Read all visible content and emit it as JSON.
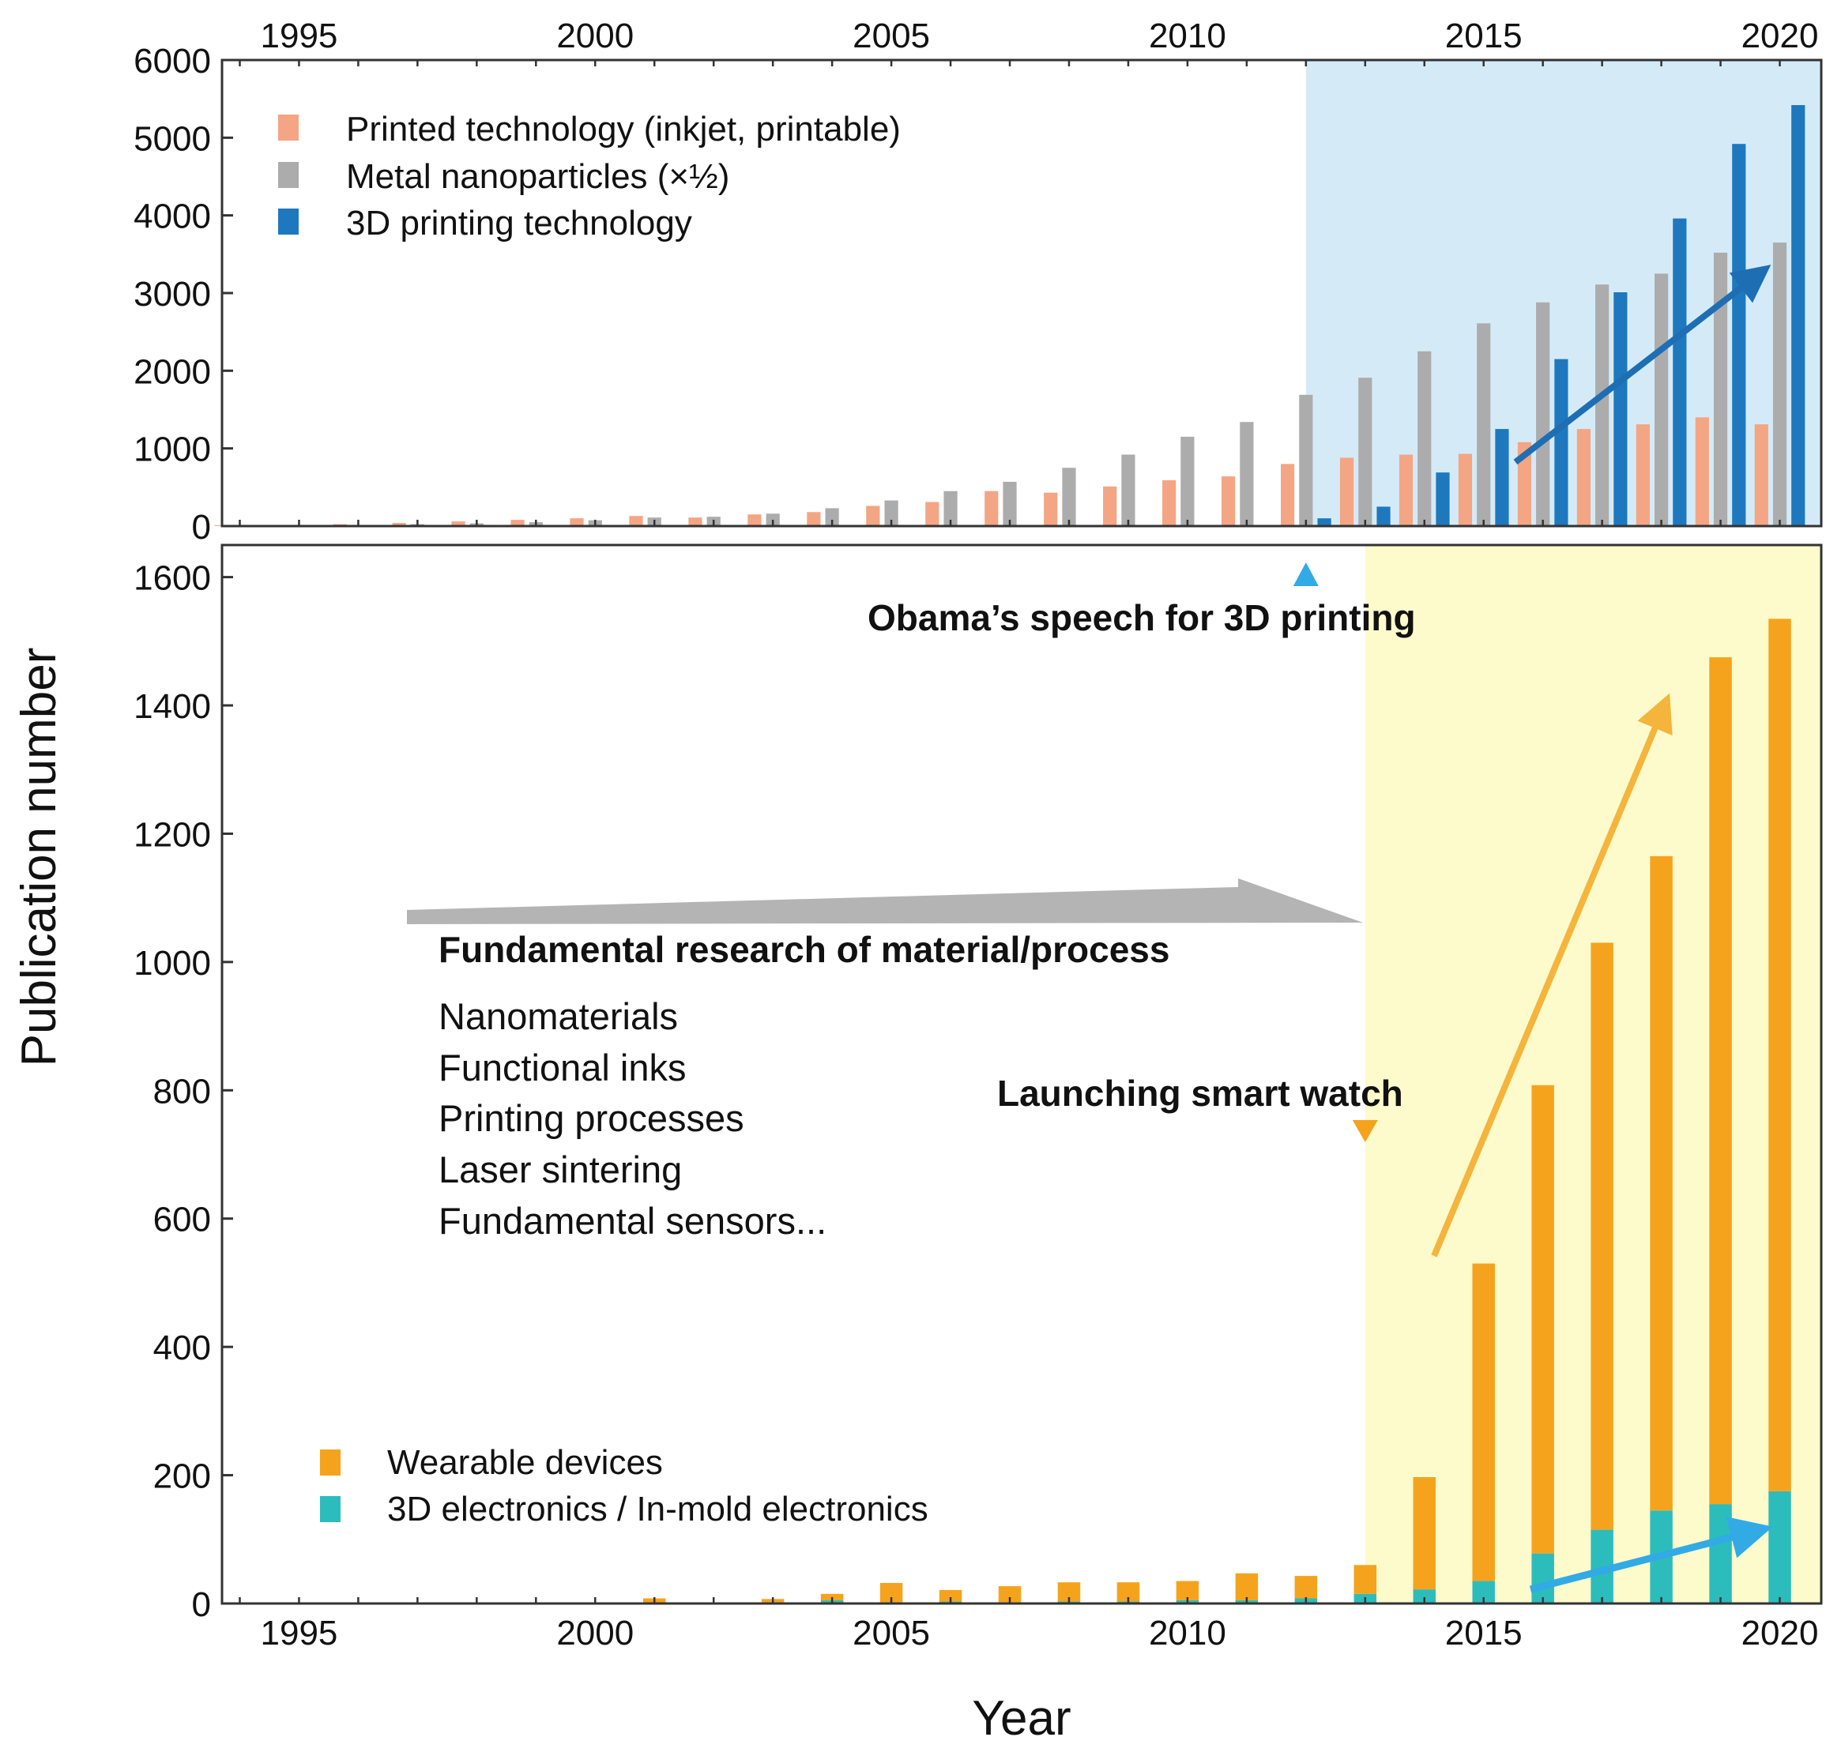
{
  "colors": {
    "printed": "#f4a583",
    "nano": "#acacac",
    "print3d": "#1e78be",
    "wearable": "#f5a31c",
    "electronics3d": "#2dbcbc",
    "highlight_top": "#d4ebf7",
    "highlight_bottom": "#fdfbcc",
    "arrow_gray": "#b4b4b4",
    "arrow_orange": "#f5b43c",
    "arrow_blue_top": "#1e6eb4",
    "arrow_cyan": "#32aae6",
    "marker_blue": "#32aae6",
    "marker_orange": "#f5a31c"
  },
  "chart_data": [
    {
      "type": "bar",
      "x": [
        1994,
        1995,
        1996,
        1997,
        1998,
        1999,
        2000,
        2001,
        2002,
        2003,
        2004,
        2005,
        2006,
        2007,
        2008,
        2009,
        2010,
        2011,
        2012,
        2013,
        2014,
        2015,
        2016,
        2017,
        2018,
        2019,
        2020
      ],
      "xticks": [
        "1995",
        "2000",
        "2005",
        "2010",
        "2015",
        "2020"
      ],
      "xlim": [
        1993.7,
        2020.7
      ],
      "ylim": [
        0,
        6000
      ],
      "yticks": [
        "0",
        "1000",
        "2000",
        "3000",
        "4000",
        "5000",
        "6000"
      ],
      "highlight_from": 2012,
      "legend_position": "top-left",
      "series": [
        {
          "name": "Printed technology (inkjet, printable)",
          "values": [
            10,
            15,
            25,
            40,
            60,
            80,
            100,
            130,
            110,
            150,
            180,
            260,
            310,
            450,
            430,
            510,
            590,
            640,
            800,
            880,
            920,
            930,
            1080,
            1250,
            1310,
            1400,
            1310
          ]
        },
        {
          "name": "Metal nanoparticles (×½)",
          "values": [
            5,
            10,
            15,
            25,
            35,
            50,
            75,
            110,
            120,
            160,
            230,
            330,
            450,
            570,
            750,
            920,
            1150,
            1340,
            1690,
            1910,
            2250,
            2610,
            2880,
            3110,
            3250,
            3520,
            3650
          ]
        },
        {
          "name": "3D printing technology",
          "values": [
            0,
            0,
            0,
            0,
            0,
            0,
            0,
            0,
            0,
            0,
            0,
            0,
            0,
            0,
            0,
            0,
            0,
            0,
            100,
            250,
            690,
            1250,
            2150,
            3010,
            3960,
            4920,
            5420
          ]
        }
      ],
      "annotation": "Obama’s speech for 3D printing",
      "annotation_year": 2012
    },
    {
      "type": "bar",
      "stacked": true,
      "x": [
        1994,
        1995,
        1996,
        1997,
        1998,
        1999,
        2000,
        2001,
        2002,
        2003,
        2004,
        2005,
        2006,
        2007,
        2008,
        2009,
        2010,
        2011,
        2012,
        2013,
        2014,
        2015,
        2016,
        2017,
        2018,
        2019,
        2020
      ],
      "xticks": [
        "1995",
        "2000",
        "2005",
        "2010",
        "2015",
        "2020"
      ],
      "xlim": [
        1993.7,
        2020.7
      ],
      "ylim": [
        0,
        1650
      ],
      "yticks": [
        "0",
        "200",
        "400",
        "600",
        "800",
        "1000",
        "1200",
        "1400",
        "1600"
      ],
      "xlabel": "Year",
      "ylabel": "Publication number",
      "highlight_from": 2013,
      "legend_position": "bottom-left",
      "series": [
        {
          "name": "Wearable devices",
          "values": [
            0,
            0,
            0,
            0,
            0,
            0,
            0,
            8,
            0,
            5,
            10,
            30,
            18,
            25,
            30,
            30,
            30,
            42,
            35,
            45,
            175,
            495,
            730,
            915,
            1020,
            1320,
            1360
          ]
        },
        {
          "name": "3D electronics / In-mold electronics",
          "values": [
            0,
            0,
            0,
            0,
            0,
            0,
            0,
            0,
            0,
            2,
            5,
            2,
            3,
            2,
            3,
            3,
            5,
            5,
            8,
            15,
            22,
            35,
            78,
            115,
            145,
            155,
            175
          ]
        }
      ],
      "annotation_fundamental": "Fundamental research of material/process",
      "topics": [
        "Nanomaterials",
        "Functional inks",
        "Printing processes",
        "Laser sintering",
        "Fundamental sensors..."
      ],
      "annotation_smartwatch": "Launching smart watch",
      "smartwatch_year": 2013
    }
  ]
}
